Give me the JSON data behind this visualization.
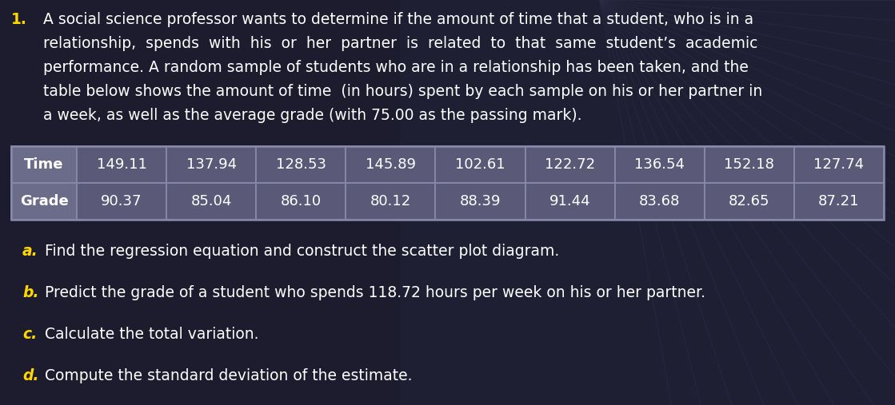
{
  "number_color": "#FFD700",
  "text_color": "#FFFFFF",
  "bg_color": "#1c1c2e",
  "table_header_bg": "#6b6b8a",
  "table_cell_bg": "#5a5a78",
  "table_border_color": "#8888aa",
  "table_text_color": "#FFFFFF",
  "time_values": [
    "149.11",
    "137.94",
    "128.53",
    "145.89",
    "102.61",
    "122.72",
    "136.54",
    "152.18",
    "127.74"
  ],
  "grade_values": [
    "90.37",
    "85.04",
    "86.10",
    "80.12",
    "88.39",
    "91.44",
    "83.68",
    "82.65",
    "87.21"
  ],
  "para_line1": "A social science professor wants to determine if the amount of time that a student, who is in a",
  "para_line2": "relationship,  spends  with  his  or  her  partner  is  related  to  that  same  student’s  academic",
  "para_line3": "performance. A random sample of students who are in a relationship has been taken, and the",
  "para_line4": "table below shows the amount of time  (in hours) spent by each sample on his or her partner in",
  "para_line5": "a week, as well as the average grade (with 75.00 as the passing mark).",
  "item_a_letter": "a.",
  "item_a_text": " Find the regression equation and construct the scatter plot diagram.",
  "item_b_letter": "b.",
  "item_b_text": " Predict the grade of a student who spends 118.72 hours per week on his or her partner.",
  "item_c_letter": "c.",
  "item_c_text": " Calculate the total variation.",
  "item_d_letter": "d.",
  "item_d_text": " Compute the standard deviation of the estimate.",
  "item_letter_color": "#FFD700",
  "item_text_color": "#FFFFFF",
  "diag_line_color": "#2e2e48",
  "diag_line_color2": "#363658"
}
